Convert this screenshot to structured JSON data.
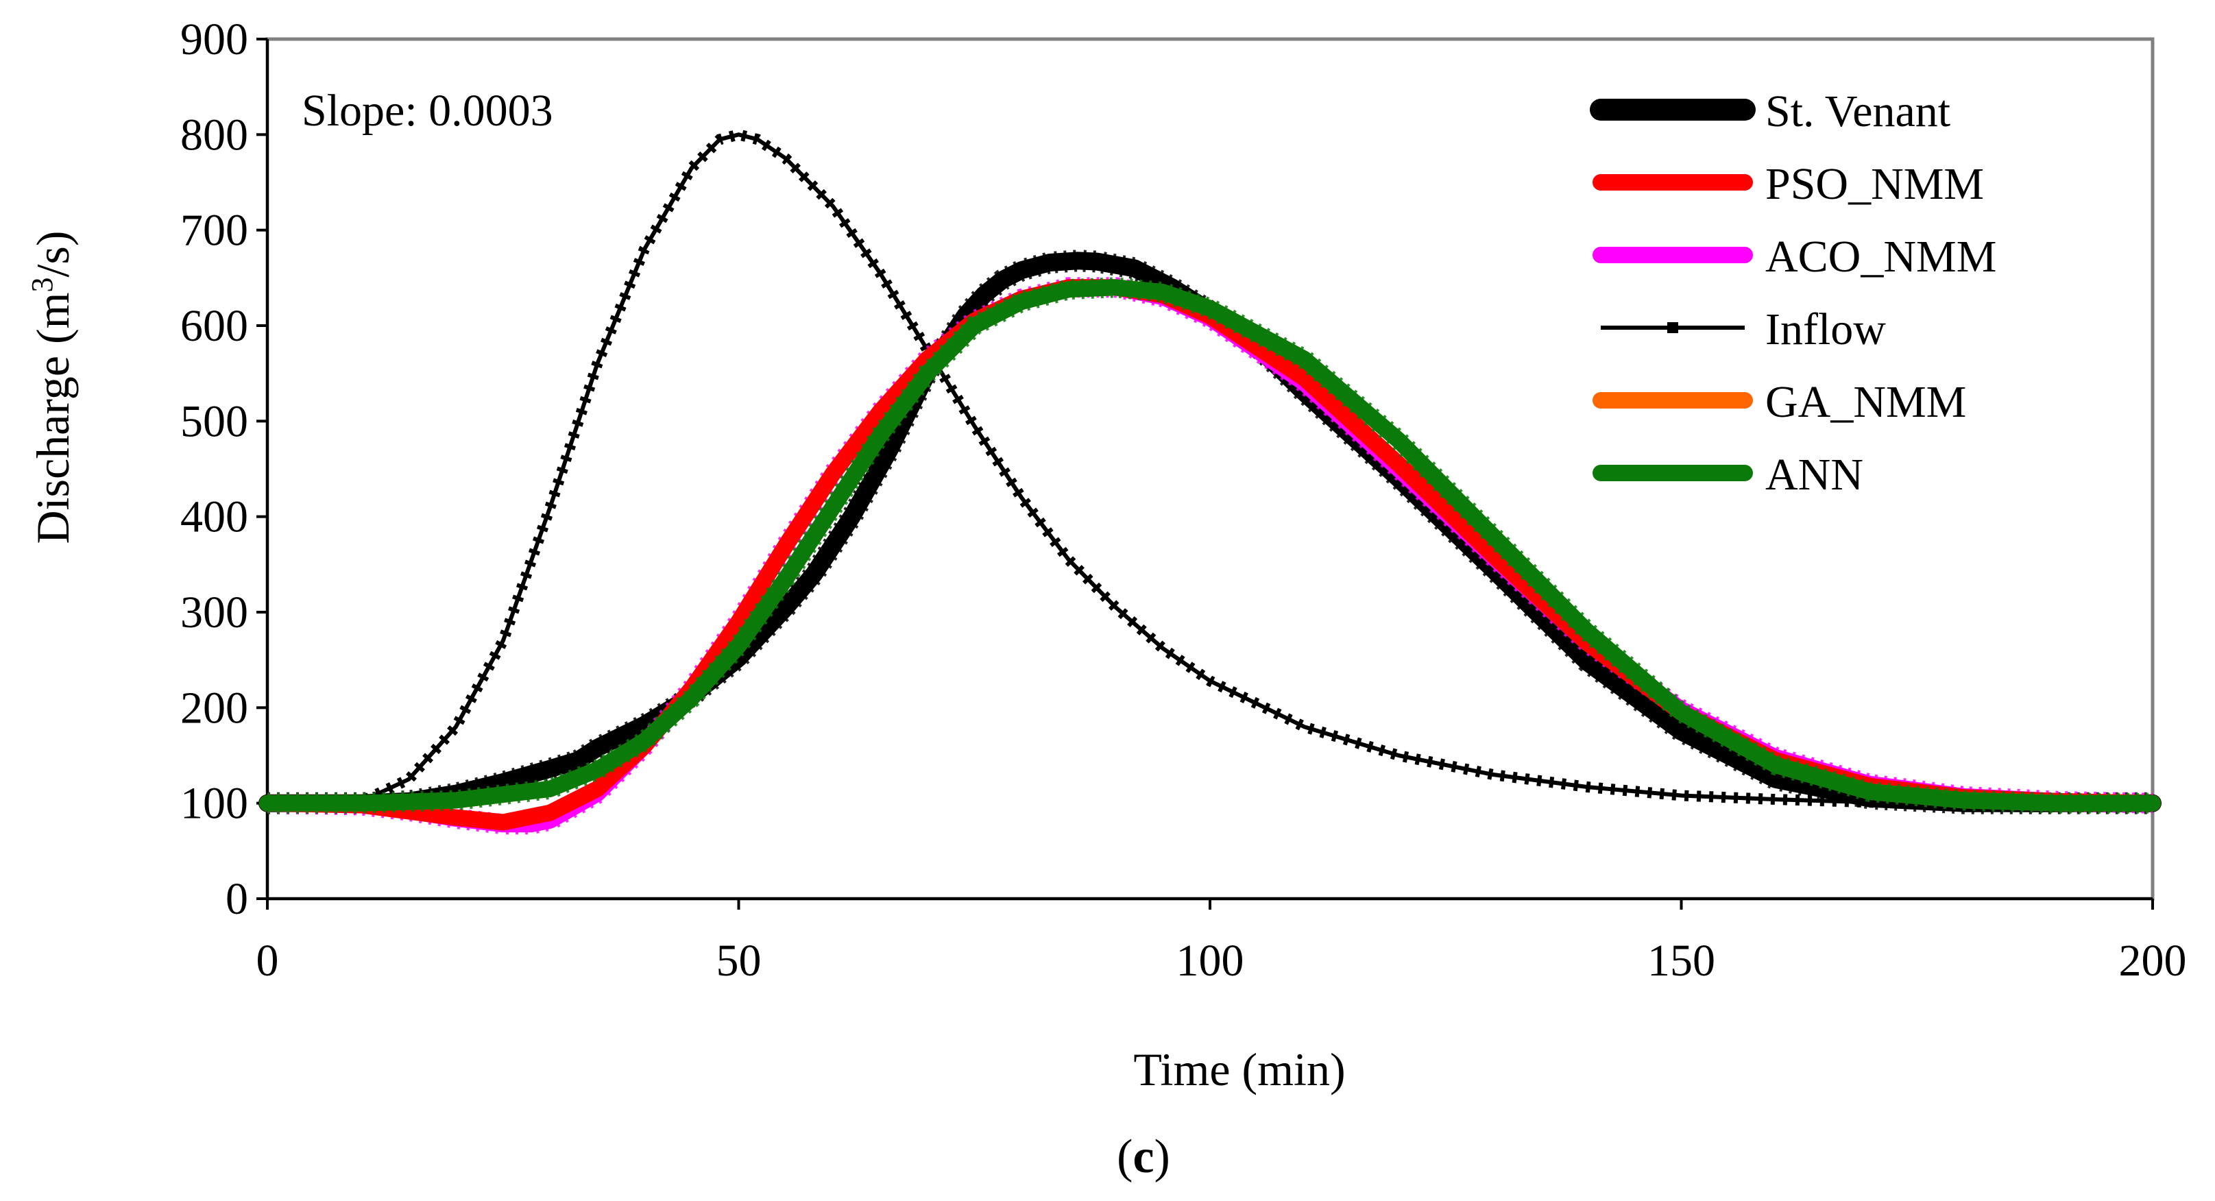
{
  "chart_data": {
    "type": "line",
    "title": "",
    "annotation": "Slope: 0.0003",
    "xlabel": "Time (min)",
    "ylabel": "Discharge (m³/s)",
    "ylabel_parts": {
      "pre": "Discharge (m",
      "sup": "3",
      "post": "/s)"
    },
    "caption": {
      "open": "(",
      "letter": "c",
      "close": ")"
    },
    "xlim": [
      0,
      200
    ],
    "ylim": [
      0,
      900
    ],
    "xticks": [
      0,
      50,
      100,
      150,
      200
    ],
    "yticks": [
      0,
      100,
      200,
      300,
      400,
      500,
      600,
      700,
      800,
      900
    ],
    "grid": false,
    "legend_position": "top-right",
    "series": [
      {
        "name": "St. Venant",
        "color": "#000000",
        "style": "thick",
        "points": [
          [
            0,
            100
          ],
          [
            10,
            100
          ],
          [
            15,
            102
          ],
          [
            20,
            110
          ],
          [
            25,
            122
          ],
          [
            30,
            136
          ],
          [
            33,
            145
          ],
          [
            35,
            158
          ],
          [
            40,
            182
          ],
          [
            45,
            212
          ],
          [
            50,
            252
          ],
          [
            55,
            305
          ],
          [
            58,
            340
          ],
          [
            62,
            400
          ],
          [
            66,
            470
          ],
          [
            70,
            550
          ],
          [
            74,
            610
          ],
          [
            76,
            632
          ],
          [
            78,
            648
          ],
          [
            80,
            658
          ],
          [
            83,
            666
          ],
          [
            86,
            668
          ],
          [
            88,
            667
          ],
          [
            92,
            660
          ],
          [
            96,
            640
          ],
          [
            100,
            615
          ],
          [
            105,
            578
          ],
          [
            110,
            530
          ],
          [
            120,
            440
          ],
          [
            130,
            345
          ],
          [
            140,
            248
          ],
          [
            150,
            175
          ],
          [
            160,
            125
          ],
          [
            170,
            105
          ],
          [
            180,
            100
          ],
          [
            200,
            100
          ]
        ]
      },
      {
        "name": "PSO_NMM",
        "color": "#ff0000",
        "style": "thick",
        "points": [
          [
            0,
            100
          ],
          [
            10,
            98
          ],
          [
            20,
            85
          ],
          [
            25,
            80
          ],
          [
            30,
            90
          ],
          [
            35,
            115
          ],
          [
            40,
            160
          ],
          [
            45,
            220
          ],
          [
            50,
            290
          ],
          [
            55,
            370
          ],
          [
            60,
            445
          ],
          [
            65,
            510
          ],
          [
            70,
            565
          ],
          [
            75,
            605
          ],
          [
            80,
            628
          ],
          [
            85,
            640
          ],
          [
            90,
            640
          ],
          [
            95,
            632
          ],
          [
            100,
            610
          ],
          [
            110,
            545
          ],
          [
            120,
            455
          ],
          [
            130,
            360
          ],
          [
            140,
            268
          ],
          [
            150,
            195
          ],
          [
            160,
            145
          ],
          [
            170,
            118
          ],
          [
            180,
            106
          ],
          [
            190,
            102
          ],
          [
            200,
            100
          ]
        ]
      },
      {
        "name": "ACO_NMM",
        "color": "#ff00ff",
        "style": "thick",
        "points": [
          [
            0,
            100
          ],
          [
            10,
            98
          ],
          [
            15,
            92
          ],
          [
            20,
            84
          ],
          [
            25,
            78
          ],
          [
            28,
            78
          ],
          [
            30,
            82
          ],
          [
            35,
            110
          ],
          [
            40,
            160
          ],
          [
            45,
            220
          ],
          [
            50,
            290
          ],
          [
            55,
            370
          ],
          [
            60,
            445
          ],
          [
            65,
            510
          ],
          [
            70,
            565
          ],
          [
            75,
            605
          ],
          [
            80,
            628
          ],
          [
            85,
            640
          ],
          [
            90,
            640
          ],
          [
            95,
            630
          ],
          [
            100,
            608
          ],
          [
            110,
            540
          ],
          [
            120,
            450
          ],
          [
            130,
            358
          ],
          [
            140,
            268
          ],
          [
            150,
            198
          ],
          [
            160,
            148
          ],
          [
            170,
            120
          ],
          [
            180,
            107
          ],
          [
            190,
            102
          ],
          [
            200,
            100
          ]
        ]
      },
      {
        "name": "Inflow",
        "color": "#000000",
        "style": "thin",
        "points": [
          [
            0,
            100
          ],
          [
            5,
            100
          ],
          [
            10,
            102
          ],
          [
            15,
            125
          ],
          [
            20,
            180
          ],
          [
            25,
            270
          ],
          [
            30,
            410
          ],
          [
            35,
            560
          ],
          [
            40,
            680
          ],
          [
            45,
            765
          ],
          [
            48,
            795
          ],
          [
            50,
            800
          ],
          [
            52,
            795
          ],
          [
            55,
            775
          ],
          [
            60,
            725
          ],
          [
            65,
            655
          ],
          [
            70,
            575
          ],
          [
            75,
            495
          ],
          [
            80,
            420
          ],
          [
            85,
            355
          ],
          [
            90,
            305
          ],
          [
            95,
            262
          ],
          [
            100,
            228
          ],
          [
            110,
            180
          ],
          [
            120,
            150
          ],
          [
            130,
            130
          ],
          [
            140,
            117
          ],
          [
            150,
            108
          ],
          [
            160,
            104
          ],
          [
            170,
            101
          ],
          [
            180,
            100
          ],
          [
            200,
            100
          ]
        ]
      },
      {
        "name": "GA_NMM",
        "color": "#ff6600",
        "style": "thick",
        "points": [
          [
            0,
            100
          ],
          [
            10,
            100
          ],
          [
            20,
            103
          ],
          [
            30,
            115
          ],
          [
            35,
            135
          ],
          [
            40,
            165
          ],
          [
            45,
            210
          ],
          [
            50,
            265
          ],
          [
            55,
            335
          ],
          [
            60,
            410
          ],
          [
            65,
            485
          ],
          [
            70,
            550
          ],
          [
            75,
            600
          ],
          [
            80,
            625
          ],
          [
            85,
            638
          ],
          [
            90,
            640
          ],
          [
            95,
            635
          ],
          [
            100,
            618
          ],
          [
            110,
            565
          ],
          [
            120,
            480
          ],
          [
            130,
            380
          ],
          [
            140,
            280
          ],
          [
            150,
            195
          ],
          [
            160,
            140
          ],
          [
            170,
            112
          ],
          [
            180,
            103
          ],
          [
            190,
            100
          ],
          [
            200,
            100
          ]
        ]
      },
      {
        "name": "ANN",
        "color": "#0a7a0a",
        "style": "thick",
        "points": [
          [
            0,
            100
          ],
          [
            10,
            100
          ],
          [
            20,
            103
          ],
          [
            30,
            115
          ],
          [
            35,
            135
          ],
          [
            40,
            165
          ],
          [
            45,
            210
          ],
          [
            50,
            265
          ],
          [
            55,
            335
          ],
          [
            60,
            410
          ],
          [
            65,
            485
          ],
          [
            70,
            550
          ],
          [
            75,
            600
          ],
          [
            80,
            625
          ],
          [
            85,
            638
          ],
          [
            90,
            640
          ],
          [
            95,
            635
          ],
          [
            100,
            618
          ],
          [
            110,
            565
          ],
          [
            120,
            480
          ],
          [
            130,
            380
          ],
          [
            140,
            280
          ],
          [
            150,
            195
          ],
          [
            160,
            140
          ],
          [
            170,
            112
          ],
          [
            180,
            103
          ],
          [
            190,
            100
          ],
          [
            200,
            100
          ]
        ]
      }
    ]
  }
}
